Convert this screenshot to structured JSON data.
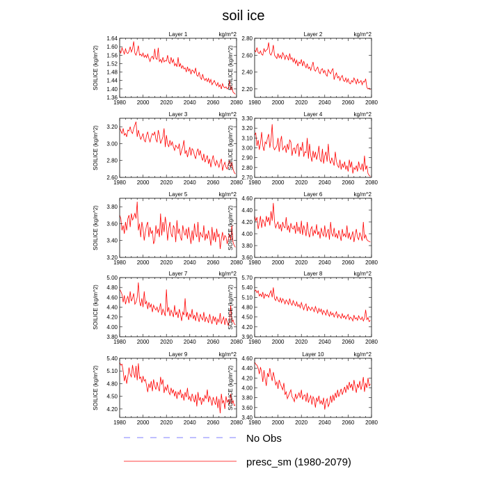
{
  "figure": {
    "title": "soil ice",
    "colors": {
      "series": "#ff0000",
      "obs": "#7f7fff",
      "axis": "#000000"
    }
  },
  "legend": {
    "items": [
      {
        "label": "No Obs",
        "style": "dashed",
        "color": "#7f7fff"
      },
      {
        "label": "presc_sm (1980-2079)",
        "style": "solid",
        "color": "#ff0000"
      }
    ]
  },
  "chart_data": [
    {
      "type": "line",
      "title": "Layer 1",
      "unit_label": "kg/m^2",
      "ylabel": "SOILICE  (kg/m^2)",
      "xlim": [
        1980,
        2080
      ],
      "xticks": [
        "1980",
        "2000",
        "2020",
        "2040",
        "2060",
        "2080"
      ],
      "ylim": [
        1.36,
        1.64
      ],
      "yticks": [
        "1.36",
        "1.40",
        "1.44",
        "1.48",
        "1.52",
        "1.56",
        "1.60",
        "1.64"
      ],
      "x_start": 1980,
      "values": [
        1.585,
        1.57,
        1.595,
        1.58,
        1.565,
        1.59,
        1.572,
        1.568,
        1.578,
        1.6,
        1.575,
        1.59,
        1.625,
        1.57,
        1.56,
        1.58,
        1.605,
        1.56,
        1.565,
        1.555,
        1.57,
        1.55,
        1.56,
        1.548,
        1.565,
        1.545,
        1.53,
        1.55,
        1.555,
        1.54,
        1.59,
        1.545,
        1.54,
        1.595,
        1.53,
        1.54,
        1.525,
        1.55,
        1.528,
        1.535,
        1.532,
        1.56,
        1.528,
        1.52,
        1.55,
        1.525,
        1.54,
        1.51,
        1.52,
        1.505,
        1.55,
        1.505,
        1.52,
        1.498,
        1.51,
        1.495,
        1.5,
        1.48,
        1.505,
        1.485,
        1.495,
        1.47,
        1.49,
        1.485,
        1.475,
        1.5,
        1.465,
        1.46,
        1.48,
        1.455,
        1.445,
        1.47,
        1.45,
        1.44,
        1.45,
        1.435,
        1.45,
        1.43,
        1.445,
        1.42,
        1.43,
        1.44,
        1.425,
        1.415,
        1.43,
        1.41,
        1.42,
        1.4,
        1.425,
        1.41,
        1.405,
        1.41,
        1.4,
        1.405,
        1.44,
        1.395,
        1.41,
        1.385,
        1.38,
        1.375
      ]
    },
    {
      "type": "line",
      "title": "Layer 2",
      "unit_label": "kg/m^2",
      "ylabel": "SOILICE  (kg/m^2)",
      "xlim": [
        1980,
        2080
      ],
      "xticks": [
        "1980",
        "2000",
        "2020",
        "2040",
        "2060",
        "2080"
      ],
      "ylim": [
        2.1,
        2.8
      ],
      "yticks": [
        "2.20",
        "2.40",
        "2.60",
        "2.80"
      ],
      "x_start": 1980,
      "values": [
        2.66,
        2.64,
        2.69,
        2.63,
        2.62,
        2.65,
        2.61,
        2.6,
        2.68,
        2.64,
        2.66,
        2.67,
        2.75,
        2.62,
        2.6,
        2.64,
        2.72,
        2.6,
        2.58,
        2.56,
        2.62,
        2.57,
        2.6,
        2.56,
        2.63,
        2.6,
        2.55,
        2.6,
        2.58,
        2.54,
        2.62,
        2.55,
        2.57,
        2.52,
        2.56,
        2.5,
        2.54,
        2.47,
        2.52,
        2.5,
        2.55,
        2.47,
        2.53,
        2.48,
        2.45,
        2.5,
        2.44,
        2.46,
        2.42,
        2.47,
        2.52,
        2.43,
        2.41,
        2.44,
        2.46,
        2.4,
        2.38,
        2.43,
        2.44,
        2.39,
        2.42,
        2.37,
        2.35,
        2.43,
        2.4,
        2.38,
        2.42,
        2.44,
        2.31,
        2.36,
        2.39,
        2.33,
        2.35,
        2.3,
        2.34,
        2.36,
        2.3,
        2.29,
        2.33,
        2.28,
        2.32,
        2.27,
        2.26,
        2.3,
        2.28,
        2.33,
        2.3,
        2.26,
        2.32,
        2.27,
        2.28,
        2.3,
        2.25,
        2.29,
        2.28,
        2.32,
        2.22,
        2.2,
        2.21,
        2.19
      ]
    },
    {
      "type": "line",
      "title": "Layer 3",
      "unit_label": "kg/m^2",
      "ylabel": "SOILICE  (kg/m^2)",
      "xlim": [
        1980,
        2080
      ],
      "xticks": [
        "1980",
        "2000",
        "2020",
        "2040",
        "2060",
        "2080"
      ],
      "ylim": [
        2.6,
        3.3
      ],
      "yticks": [
        "2.60",
        "2.80",
        "3.00",
        "3.20"
      ],
      "x_start": 1980,
      "values": [
        3.19,
        3.15,
        3.12,
        3.18,
        3.1,
        3.12,
        3.08,
        3.16,
        3.15,
        3.2,
        3.14,
        3.12,
        3.18,
        3.22,
        3.26,
        3.08,
        3.16,
        3.1,
        3.05,
        3.08,
        3.12,
        3.04,
        3.02,
        3.1,
        3.14,
        3.06,
        3.02,
        3.08,
        3.12,
        3.1,
        3.14,
        3.05,
        3.02,
        3.16,
        3.1,
        3.0,
        3.04,
        3.08,
        3.18,
        2.96,
        3.1,
        3.0,
        2.96,
        3.04,
        2.98,
        3.02,
        2.96,
        2.92,
        2.98,
        2.96,
        2.94,
        3.0,
        2.86,
        2.92,
        2.96,
        3.04,
        2.88,
        2.92,
        2.84,
        2.9,
        2.96,
        2.86,
        2.94,
        2.92,
        2.86,
        2.82,
        2.9,
        2.94,
        2.86,
        2.92,
        2.84,
        2.8,
        2.88,
        2.78,
        2.82,
        2.86,
        2.76,
        2.82,
        2.72,
        2.8,
        2.86,
        2.78,
        2.74,
        2.8,
        2.76,
        2.72,
        2.78,
        2.82,
        2.68,
        2.74,
        2.78,
        2.72,
        2.7,
        2.76,
        2.8,
        2.72,
        2.78,
        2.7,
        2.66,
        2.64
      ]
    },
    {
      "type": "line",
      "title": "Layer 4",
      "unit_label": "kg/m^2",
      "ylabel": "SOILICE  (kg/m^2)",
      "xlim": [
        1980,
        2080
      ],
      "xticks": [
        "1980",
        "2000",
        "2020",
        "2040",
        "2060",
        "2080"
      ],
      "ylim": [
        2.7,
        3.3
      ],
      "yticks": [
        "2.70",
        "2.80",
        "2.90",
        "3.00",
        "3.10",
        "3.20",
        "3.30"
      ],
      "x_start": 1980,
      "values": [
        3.13,
        3.15,
        3.02,
        3.08,
        2.98,
        3.05,
        3.16,
        3.02,
        2.97,
        3.06,
        3.04,
        3.1,
        3.14,
        3.0,
        3.08,
        3.24,
        3.01,
        2.98,
        3.0,
        3.02,
        3.1,
        2.96,
        3.06,
        3.12,
        2.98,
        3.0,
        3.02,
        2.95,
        3.04,
        2.98,
        3.08,
        3.06,
        2.92,
        2.99,
        3.0,
        2.94,
        3.02,
        3.04,
        2.91,
        3.01,
        2.97,
        3.06,
        2.91,
        2.96,
        2.95,
        3.1,
        2.89,
        3.04,
        2.92,
        2.86,
        2.97,
        2.9,
        2.96,
        2.88,
        2.93,
        3.02,
        2.88,
        2.86,
        2.99,
        2.84,
        2.92,
        2.96,
        2.86,
        3.04,
        2.88,
        2.84,
        2.9,
        2.86,
        2.82,
        2.96,
        2.86,
        2.82,
        2.8,
        2.88,
        2.78,
        2.84,
        2.8,
        2.86,
        2.78,
        2.82,
        2.76,
        2.88,
        2.8,
        2.86,
        2.74,
        2.8,
        2.78,
        2.82,
        2.76,
        2.86,
        2.8,
        2.78,
        2.84,
        2.76,
        2.92,
        2.78,
        2.82,
        2.74,
        2.72,
        2.71
      ]
    },
    {
      "type": "line",
      "title": "Layer 5",
      "unit_label": "kg/m^2",
      "ylabel": "SOILICE  (kg/m^2)",
      "xlim": [
        1980,
        2080
      ],
      "xticks": [
        "1980",
        "2000",
        "2020",
        "2040",
        "2060",
        "2080"
      ],
      "ylim": [
        3.2,
        3.9
      ],
      "yticks": [
        "3.20",
        "3.40",
        "3.60",
        "3.80"
      ],
      "x_start": 1980,
      "values": [
        3.7,
        3.66,
        3.52,
        3.58,
        3.48,
        3.62,
        3.52,
        3.66,
        3.7,
        3.56,
        3.72,
        3.64,
        3.68,
        3.72,
        3.66,
        3.86,
        3.52,
        3.6,
        3.44,
        3.62,
        3.54,
        3.4,
        3.5,
        3.58,
        3.62,
        3.44,
        3.56,
        3.48,
        3.52,
        3.36,
        3.4,
        3.58,
        3.48,
        3.54,
        3.44,
        3.72,
        3.46,
        3.62,
        3.5,
        3.68,
        3.58,
        3.4,
        3.54,
        3.62,
        3.48,
        3.44,
        3.58,
        3.54,
        3.38,
        3.64,
        3.48,
        3.54,
        3.44,
        3.4,
        3.58,
        3.5,
        3.46,
        3.54,
        3.42,
        3.56,
        3.46,
        3.36,
        3.52,
        3.4,
        3.6,
        3.48,
        3.44,
        3.62,
        3.38,
        3.5,
        3.46,
        3.44,
        3.58,
        3.4,
        3.48,
        3.42,
        3.52,
        3.44,
        3.34,
        3.56,
        3.4,
        3.5,
        3.38,
        3.54,
        3.44,
        3.48,
        3.3,
        3.42,
        3.5,
        3.4,
        3.46,
        3.44,
        3.36,
        3.42,
        3.48,
        3.4,
        3.58,
        3.38,
        3.34,
        3.32
      ]
    },
    {
      "type": "line",
      "title": "Layer 6",
      "unit_label": "kg/m^2",
      "ylabel": "SOILICE  (kg/m^2)",
      "xlim": [
        1980,
        2080
      ],
      "xticks": [
        "1980",
        "2000",
        "2020",
        "2040",
        "2060",
        "2080"
      ],
      "ylim": [
        3.6,
        4.6
      ],
      "yticks": [
        "3.60",
        "3.80",
        "4.00",
        "4.20",
        "4.40",
        "4.60"
      ],
      "x_start": 1980,
      "values": [
        4.3,
        4.22,
        4.28,
        4.08,
        4.18,
        4.3,
        4.1,
        4.24,
        4.2,
        4.12,
        4.3,
        4.2,
        4.28,
        4.14,
        4.38,
        4.22,
        4.52,
        4.2,
        4.1,
        4.16,
        4.2,
        4.08,
        4.16,
        4.04,
        4.2,
        4.12,
        4.1,
        4.28,
        4.06,
        4.14,
        4.02,
        4.18,
        4.1,
        4.08,
        4.14,
        4.0,
        4.2,
        4.04,
        4.12,
        4.0,
        4.22,
        3.98,
        4.14,
        4.06,
        3.96,
        4.2,
        4.02,
        3.94,
        4.08,
        4.12,
        3.96,
        4.06,
        4.0,
        4.16,
        3.98,
        4.04,
        3.92,
        4.1,
        4.0,
        3.96,
        4.14,
        3.94,
        4.02,
        4.08,
        3.9,
        4.2,
        4.0,
        3.96,
        4.1,
        3.94,
        4.0,
        3.92,
        4.06,
        3.98,
        3.88,
        4.08,
        3.96,
        4.0,
        3.94,
        4.14,
        3.92,
        4.02,
        3.9,
        3.96,
        4.04,
        3.86,
        3.98,
        4.08,
        3.94,
        3.9,
        4.02,
        3.96,
        3.88,
        4.2,
        3.92,
        3.98,
        3.9,
        3.88,
        3.87,
        3.86
      ]
    },
    {
      "type": "line",
      "title": "Layer 7",
      "unit_label": "kg/m^2",
      "ylabel": "SOILICE  (kg/m^2)",
      "xlim": [
        1980,
        2080
      ],
      "xticks": [
        "1980",
        "2000",
        "2020",
        "2040",
        "2060",
        "2080"
      ],
      "ylim": [
        3.8,
        5.0
      ],
      "yticks": [
        "3.80",
        "4.00",
        "4.20",
        "4.40",
        "4.60",
        "4.80",
        "5.00"
      ],
      "x_start": 1980,
      "values": [
        4.76,
        4.72,
        4.66,
        4.5,
        4.64,
        4.46,
        4.56,
        4.62,
        4.48,
        4.72,
        4.52,
        4.58,
        4.68,
        4.46,
        4.5,
        4.6,
        4.9,
        4.52,
        4.42,
        4.58,
        4.4,
        4.72,
        4.46,
        4.52,
        4.36,
        4.5,
        4.4,
        4.46,
        4.3,
        4.44,
        4.38,
        4.34,
        4.4,
        4.3,
        4.36,
        4.48,
        4.24,
        4.36,
        4.3,
        4.22,
        4.76,
        4.3,
        4.4,
        4.22,
        4.34,
        4.28,
        4.2,
        4.44,
        4.24,
        4.3,
        4.18,
        4.36,
        4.26,
        4.12,
        4.3,
        4.24,
        4.58,
        4.2,
        4.3,
        4.14,
        4.26,
        4.2,
        4.36,
        4.16,
        4.24,
        4.12,
        4.3,
        4.2,
        4.1,
        4.26,
        4.18,
        4.14,
        4.3,
        4.1,
        4.2,
        4.16,
        4.08,
        4.26,
        4.14,
        4.06,
        4.22,
        4.12,
        4.2,
        4.04,
        4.16,
        4.1,
        4.28,
        4.06,
        4.14,
        4.2,
        4.04,
        4.18,
        4.1,
        4.02,
        4.14,
        4.44,
        4.1,
        4.14,
        4.06,
        4.04
      ]
    },
    {
      "type": "line",
      "title": "Layer 8",
      "unit_label": "kg/m^2",
      "ylabel": "SOILICE  (kg/m^2)",
      "xlim": [
        1980,
        2080
      ],
      "xticks": [
        "1980",
        "2000",
        "2020",
        "2040",
        "2060",
        "2080"
      ],
      "ylim": [
        3.9,
        5.7
      ],
      "yticks": [
        "3.90",
        "4.20",
        "4.50",
        "4.80",
        "5.10",
        "5.40",
        "5.70"
      ],
      "x_start": 1980,
      "values": [
        5.28,
        5.32,
        5.24,
        5.3,
        5.14,
        5.2,
        5.12,
        5.26,
        5.06,
        5.2,
        5.14,
        5.18,
        5.1,
        5.22,
        5.3,
        5.1,
        5.4,
        5.06,
        5.0,
        5.12,
        5.02,
        4.96,
        5.08,
        4.94,
        5.06,
        5.0,
        4.9,
        5.02,
        4.96,
        4.88,
        5.06,
        4.92,
        4.86,
        5.0,
        4.9,
        4.84,
        4.96,
        4.82,
        4.88,
        4.78,
        4.94,
        4.82,
        4.72,
        4.84,
        4.9,
        4.68,
        4.82,
        4.76,
        4.7,
        4.8,
        4.74,
        4.66,
        4.82,
        4.72,
        4.62,
        4.76,
        4.66,
        4.74,
        4.58,
        4.7,
        4.64,
        4.56,
        4.72,
        4.6,
        4.52,
        4.66,
        4.56,
        4.62,
        4.5,
        4.58,
        4.66,
        4.48,
        4.58,
        4.52,
        4.46,
        4.6,
        4.48,
        4.54,
        4.44,
        4.52,
        4.58,
        4.42,
        4.5,
        4.46,
        4.38,
        4.56,
        4.44,
        4.48,
        4.4,
        4.54,
        4.46,
        4.42,
        4.5,
        4.38,
        4.46,
        4.72,
        4.42,
        4.48,
        4.36,
        4.4
      ]
    },
    {
      "type": "line",
      "title": "Layer 9",
      "unit_label": "kg/m^2",
      "ylabel": "SOILICE  (kg/m^2)",
      "xlim": [
        1980,
        2080
      ],
      "xticks": [
        "1980",
        "2000",
        "2020",
        "2040",
        "2060",
        "2080"
      ],
      "ylim": [
        4.0,
        5.4
      ],
      "yticks": [
        "4.20",
        "4.50",
        "4.80",
        "5.10",
        "5.40"
      ],
      "x_start": 1980,
      "values": [
        5.3,
        5.24,
        5.26,
        5.1,
        4.86,
        5.0,
        4.8,
        4.96,
        5.18,
        5.02,
        4.96,
        5.24,
        5.06,
        4.94,
        5.22,
        4.88,
        5.28,
        4.92,
        4.96,
        4.82,
        4.98,
        4.86,
        4.9,
        4.76,
        4.6,
        4.8,
        4.7,
        4.86,
        4.62,
        4.9,
        4.74,
        4.66,
        4.84,
        4.7,
        4.62,
        4.96,
        4.78,
        4.9,
        4.58,
        4.72,
        4.64,
        4.78,
        4.6,
        4.54,
        4.7,
        4.58,
        4.66,
        4.5,
        4.62,
        4.44,
        4.6,
        4.54,
        4.66,
        4.46,
        4.56,
        4.4,
        4.6,
        4.48,
        4.7,
        4.42,
        4.5,
        4.38,
        4.56,
        4.46,
        4.36,
        4.54,
        4.26,
        4.6,
        4.4,
        4.48,
        4.3,
        4.46,
        4.38,
        4.52,
        4.44,
        4.66,
        4.36,
        4.5,
        4.42,
        4.28,
        4.48,
        4.38,
        4.3,
        4.5,
        4.22,
        4.44,
        4.1,
        4.56,
        4.34,
        4.4,
        4.2,
        4.5,
        4.36,
        4.42,
        4.3,
        4.56,
        4.32,
        4.4,
        4.28,
        4.3
      ]
    },
    {
      "type": "line",
      "title": "Layer 10",
      "unit_label": "kg/m^2",
      "ylabel": "SOILICE  (kg/m^2)",
      "xlim": [
        1980,
        2080
      ],
      "xticks": [
        "1980",
        "2000",
        "2020",
        "2040",
        "2060",
        "2080"
      ],
      "ylim": [
        3.4,
        4.6
      ],
      "yticks": [
        "3.40",
        "3.60",
        "3.80",
        "4.00",
        "4.20",
        "4.40",
        "4.60"
      ],
      "x_start": 1980,
      "values": [
        4.52,
        4.48,
        4.46,
        4.4,
        4.28,
        4.42,
        4.32,
        4.12,
        4.36,
        4.18,
        4.04,
        4.3,
        4.22,
        4.4,
        4.26,
        4.14,
        4.32,
        4.2,
        4.06,
        4.12,
        3.98,
        4.16,
        4.08,
        4.02,
        3.96,
        4.1,
        3.86,
        3.92,
        3.78,
        3.84,
        3.9,
        3.96,
        3.82,
        3.78,
        3.72,
        3.88,
        3.78,
        3.84,
        3.9,
        3.8,
        3.96,
        3.76,
        3.84,
        3.86,
        3.72,
        3.9,
        3.7,
        3.78,
        3.84,
        3.66,
        3.82,
        3.76,
        3.6,
        3.8,
        3.72,
        3.84,
        3.68,
        3.74,
        3.66,
        3.8,
        3.56,
        3.72,
        3.78,
        3.62,
        3.68,
        3.84,
        3.7,
        3.86,
        3.74,
        3.9,
        3.8,
        3.96,
        3.82,
        3.9,
        3.98,
        3.86,
        3.94,
        4.02,
        3.9,
        4.06,
        3.96,
        4.12,
        4.0,
        4.08,
        3.94,
        4.16,
        4.02,
        3.9,
        4.08,
        4.0,
        4.14,
        3.96,
        4.06,
        4.22,
        3.92,
        4.1,
        4.0,
        4.2,
        4.04,
        4.08
      ]
    }
  ]
}
